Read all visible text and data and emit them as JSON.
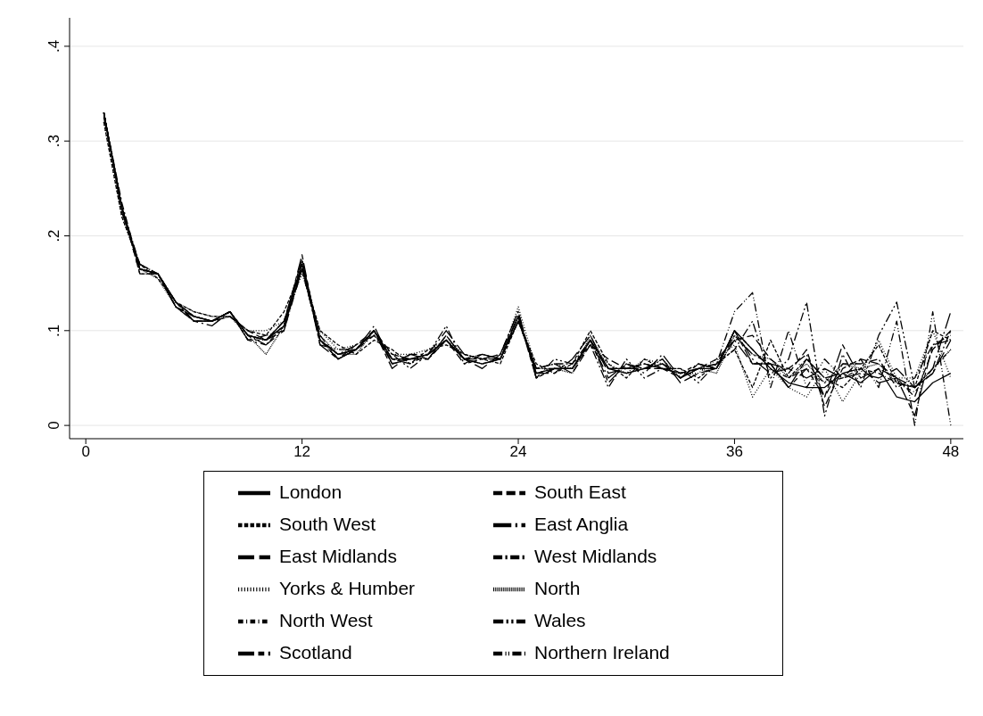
{
  "chart_data": {
    "type": "line",
    "xlim": [
      -0.9,
      48.7
    ],
    "xticks": [
      0,
      12,
      24,
      36,
      48
    ],
    "ylim": [
      -0.014,
      0.43
    ],
    "yticks": [
      0,
      {
        "value": 0.1,
        "label": ".1"
      },
      {
        "value": 0.2,
        "label": ".2"
      },
      {
        "value": 0.3,
        "label": ".3"
      },
      {
        "value": 0.4,
        "label": ".4"
      }
    ],
    "grid": "y",
    "legend": "bottom",
    "marker": "none",
    "x": [
      1,
      2,
      3,
      4,
      5,
      6,
      7,
      8,
      9,
      10,
      11,
      12,
      13,
      14,
      15,
      16,
      17,
      18,
      19,
      20,
      21,
      22,
      23,
      24,
      25,
      26,
      27,
      28,
      29,
      30,
      31,
      32,
      33,
      34,
      35,
      36,
      37,
      38,
      39,
      40,
      41,
      42,
      43,
      44,
      45,
      46,
      47,
      48
    ],
    "series": [
      {
        "name": "London",
        "color": "#000000",
        "line_style": "solid",
        "values": [
          0.33,
          0.23,
          0.165,
          0.16,
          0.13,
          0.115,
          0.11,
          0.12,
          0.095,
          0.09,
          0.11,
          0.17,
          0.09,
          0.075,
          0.08,
          0.1,
          0.07,
          0.07,
          0.075,
          0.09,
          0.07,
          0.065,
          0.07,
          0.115,
          0.055,
          0.06,
          0.06,
          0.09,
          0.06,
          0.055,
          0.06,
          0.065,
          0.05,
          0.06,
          0.06,
          0.1,
          0.08,
          0.06,
          0.045,
          0.04,
          0.04,
          0.055,
          0.045,
          0.06,
          0.03,
          0.025,
          0.045,
          0.055
        ]
      },
      {
        "name": "South East",
        "color": "#000000",
        "line_style": "dashed",
        "values": [
          0.33,
          0.23,
          0.16,
          0.16,
          0.125,
          0.11,
          0.11,
          0.115,
          0.1,
          0.09,
          0.105,
          0.165,
          0.095,
          0.07,
          0.085,
          0.1,
          0.075,
          0.07,
          0.07,
          0.09,
          0.065,
          0.075,
          0.07,
          0.11,
          0.06,
          0.065,
          0.055,
          0.085,
          0.07,
          0.06,
          0.065,
          0.06,
          0.055,
          0.06,
          0.07,
          0.09,
          0.095,
          0.07,
          0.055,
          0.08,
          0.02,
          0.06,
          0.07,
          0.065,
          0.05,
          0.03,
          0.08,
          0.1
        ]
      },
      {
        "name": "South West",
        "color": "#000000",
        "line_style": "shortdash",
        "values": [
          0.32,
          0.22,
          0.17,
          0.155,
          0.13,
          0.12,
          0.115,
          0.115,
          0.1,
          0.095,
          0.12,
          0.165,
          0.1,
          0.085,
          0.075,
          0.09,
          0.08,
          0.065,
          0.08,
          0.085,
          0.075,
          0.07,
          0.065,
          0.11,
          0.065,
          0.055,
          0.065,
          0.1,
          0.065,
          0.05,
          0.07,
          0.06,
          0.06,
          0.05,
          0.065,
          0.08,
          0.04,
          0.09,
          0.05,
          0.07,
          0.05,
          0.04,
          0.06,
          0.085,
          0.045,
          0.04,
          0.1,
          0.09
        ]
      },
      {
        "name": "East Anglia",
        "color": "#000000",
        "line_style": "longdashdot",
        "values": [
          0.33,
          0.225,
          0.17,
          0.16,
          0.13,
          0.11,
          0.105,
          0.12,
          0.09,
          0.085,
          0.1,
          0.17,
          0.085,
          0.08,
          0.08,
          0.105,
          0.065,
          0.075,
          0.075,
          0.1,
          0.075,
          0.07,
          0.075,
          0.12,
          0.05,
          0.06,
          0.06,
          0.09,
          0.05,
          0.065,
          0.055,
          0.075,
          0.05,
          0.065,
          0.06,
          0.1,
          0.07,
          0.055,
          0.06,
          0.05,
          0.06,
          0.05,
          0.055,
          0.05,
          0.06,
          0.04,
          0.06,
          0.12
        ]
      },
      {
        "name": "East Midlands",
        "color": "#000000",
        "line_style": "longdash",
        "values": [
          0.325,
          0.23,
          0.165,
          0.16,
          0.125,
          0.115,
          0.11,
          0.12,
          0.095,
          0.09,
          0.11,
          0.175,
          0.09,
          0.07,
          0.08,
          0.1,
          0.065,
          0.07,
          0.07,
          0.095,
          0.07,
          0.06,
          0.075,
          0.115,
          0.055,
          0.055,
          0.07,
          0.095,
          0.055,
          0.06,
          0.06,
          0.07,
          0.045,
          0.055,
          0.06,
          0.09,
          0.065,
          0.065,
          0.04,
          0.07,
          0.05,
          0.055,
          0.06,
          0.045,
          0.05,
          0.04,
          0.055,
          0.09
        ]
      },
      {
        "name": "West Midlands",
        "color": "#000000",
        "line_style": "dashdot",
        "values": [
          0.33,
          0.235,
          0.165,
          0.16,
          0.13,
          0.11,
          0.11,
          0.12,
          0.095,
          0.085,
          0.105,
          0.165,
          0.09,
          0.075,
          0.08,
          0.095,
          0.07,
          0.065,
          0.075,
          0.09,
          0.07,
          0.075,
          0.07,
          0.11,
          0.06,
          0.065,
          0.065,
          0.09,
          0.06,
          0.06,
          0.065,
          0.06,
          0.055,
          0.06,
          0.065,
          0.095,
          0.075,
          0.065,
          0.06,
          0.075,
          0.03,
          0.065,
          0.065,
          0.07,
          0.04,
          0.05,
          0.085,
          0.095
        ]
      },
      {
        "name": "Yorks & Humber",
        "color": "#000000",
        "line_style": "dotted",
        "values": [
          0.32,
          0.22,
          0.17,
          0.16,
          0.13,
          0.12,
          0.115,
          0.115,
          0.1,
          0.1,
          0.11,
          0.16,
          0.1,
          0.08,
          0.085,
          0.095,
          0.075,
          0.075,
          0.08,
          0.09,
          0.075,
          0.07,
          0.07,
          0.125,
          0.06,
          0.065,
          0.06,
          0.085,
          0.065,
          0.055,
          0.07,
          0.065,
          0.055,
          0.055,
          0.07,
          0.085,
          0.03,
          0.06,
          0.04,
          0.03,
          0.06,
          0.025,
          0.055,
          0.09,
          0.05,
          0.05,
          0.1,
          0.05
        ]
      },
      {
        "name": "North",
        "color": "#000000",
        "line_style": "densedot",
        "values": [
          0.33,
          0.225,
          0.165,
          0.155,
          0.125,
          0.115,
          0.11,
          0.115,
          0.095,
          0.075,
          0.105,
          0.17,
          0.095,
          0.075,
          0.075,
          0.1,
          0.07,
          0.07,
          0.075,
          0.09,
          0.07,
          0.075,
          0.07,
          0.11,
          0.06,
          0.06,
          0.055,
          0.095,
          0.06,
          0.055,
          0.06,
          0.07,
          0.05,
          0.06,
          0.055,
          0.095,
          0.075,
          0.07,
          0.05,
          0.065,
          0.045,
          0.065,
          0.06,
          0.065,
          0.045,
          0.04,
          0.06,
          0.08
        ]
      },
      {
        "name": "North West",
        "color": "#000000",
        "line_style": "shortdashdot",
        "values": [
          0.33,
          0.23,
          0.16,
          0.16,
          0.125,
          0.115,
          0.11,
          0.12,
          0.09,
          0.09,
          0.105,
          0.165,
          0.09,
          0.07,
          0.08,
          0.1,
          0.065,
          0.07,
          0.07,
          0.09,
          0.07,
          0.065,
          0.07,
          0.115,
          0.055,
          0.06,
          0.06,
          0.09,
          0.06,
          0.06,
          0.065,
          0.06,
          0.055,
          0.065,
          0.06,
          0.1,
          0.08,
          0.06,
          0.05,
          0.06,
          0.045,
          0.05,
          0.06,
          0.055,
          0.045,
          0.035,
          0.06,
          0.08
        ]
      },
      {
        "name": "Wales",
        "color": "#000000",
        "line_style": "dashdotted",
        "values": [
          0.33,
          0.23,
          0.165,
          0.16,
          0.13,
          0.11,
          0.11,
          0.12,
          0.095,
          0.09,
          0.1,
          0.175,
          0.09,
          0.075,
          0.085,
          0.095,
          0.075,
          0.06,
          0.075,
          0.105,
          0.065,
          0.07,
          0.075,
          0.12,
          0.05,
          0.07,
          0.065,
          0.085,
          0.04,
          0.07,
          0.05,
          0.06,
          0.06,
          0.045,
          0.065,
          0.08,
          0.11,
          0.05,
          0.07,
          0.13,
          0.01,
          0.075,
          0.04,
          0.095,
          0.13,
          0.04,
          0.055,
          0.1
        ]
      },
      {
        "name": "Scotland",
        "color": "#000000",
        "line_style": "longdashshortdash",
        "values": [
          0.33,
          0.23,
          0.165,
          0.16,
          0.13,
          0.115,
          0.11,
          0.12,
          0.095,
          0.09,
          0.105,
          0.18,
          0.085,
          0.07,
          0.08,
          0.1,
          0.06,
          0.075,
          0.07,
          0.095,
          0.07,
          0.07,
          0.07,
          0.115,
          0.05,
          0.06,
          0.06,
          0.09,
          0.045,
          0.065,
          0.06,
          0.06,
          0.05,
          0.065,
          0.06,
          0.1,
          0.065,
          0.065,
          0.04,
          0.06,
          0.03,
          0.085,
          0.05,
          0.06,
          0.05,
          0.01,
          0.085,
          0.09
        ]
      },
      {
        "name": "Northern Ireland",
        "color": "#000000",
        "line_style": "dashdotdot",
        "values": [
          0.33,
          0.23,
          0.17,
          0.16,
          0.125,
          0.11,
          0.11,
          0.12,
          0.09,
          0.095,
          0.1,
          0.165,
          0.09,
          0.075,
          0.08,
          0.1,
          0.07,
          0.07,
          0.075,
          0.09,
          0.07,
          0.065,
          0.07,
          0.11,
          0.06,
          0.06,
          0.06,
          0.085,
          0.06,
          0.06,
          0.06,
          0.065,
          0.055,
          0.06,
          0.065,
          0.12,
          0.14,
          0.04,
          0.1,
          0.04,
          0.07,
          0.05,
          0.07,
          0.04,
          0.11,
          0,
          0.12,
          0
        ]
      }
    ]
  }
}
